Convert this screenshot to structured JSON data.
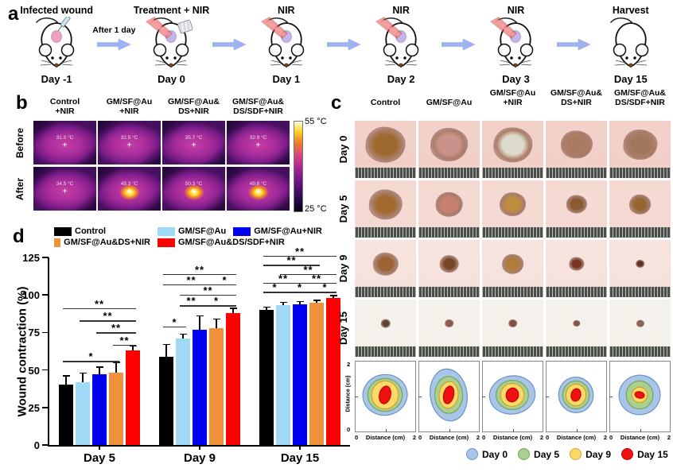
{
  "panels": {
    "a": {
      "label": "a",
      "arrow_note": "After 1 day",
      "stages": [
        {
          "title": "Infected wound",
          "day": "Day -1",
          "wound_color": "#f2a0c0",
          "syringe": true,
          "laser": false,
          "gauze": false
        },
        {
          "title": "Treatment + NIR",
          "day": "Day 0",
          "wound_color": "#c3b5e6",
          "syringe": false,
          "laser": true,
          "gauze": true
        },
        {
          "title": "NIR",
          "day": "Day 1",
          "wound_color": "#c3b5e6",
          "syringe": false,
          "laser": true,
          "gauze": false
        },
        {
          "title": "NIR",
          "day": "Day 2",
          "wound_color": "#c3b5e6",
          "syringe": false,
          "laser": true,
          "gauze": false
        },
        {
          "title": "NIR",
          "day": "Day 3",
          "wound_color": "#c3b5e6",
          "syringe": false,
          "laser": true,
          "gauze": false
        },
        {
          "title": "Harvest",
          "day": "Day 15",
          "wound_color": null,
          "syringe": false,
          "laser": false,
          "gauze": false
        }
      ]
    },
    "b": {
      "label": "b",
      "col_headers": [
        "Control\n+NIR",
        "GM/SF@Au\n+NIR",
        "GM/SF@Au&\nDS+NIR",
        "GM/SF@Au&\nDS/SDF+NIR"
      ],
      "row_headers": [
        "Before",
        "After"
      ],
      "temps": [
        [
          "31.0 °C",
          "32.5 °C",
          "35.7 °C",
          "32.9 °C"
        ],
        [
          "34.5 °C",
          "49.3 °C",
          "50.3 °C",
          "49.8 °C"
        ]
      ],
      "hotspots": [
        [
          0,
          0,
          0,
          0
        ],
        [
          0,
          1,
          1,
          1
        ]
      ],
      "colorbar": {
        "top": "55 °C",
        "bottom": "25 °C"
      }
    },
    "c": {
      "label": "c",
      "col_headers": [
        "Control",
        "GM/SF@Au",
        "GM/SF@Au\n+NIR",
        "GM/SF@Au&\nDS+NIR",
        "GM/SF@Au&\nDS/SDF+NIR"
      ],
      "row_headers": [
        "Day 0",
        "Day 5",
        "Day 9",
        "Day 15"
      ],
      "skin_colors": [
        "#f0ccc4",
        "#f4d6cf",
        "#f6e0da",
        "#f3efe9"
      ],
      "wound_scales": [
        [
          0.66,
          0.62,
          0.64,
          0.52,
          0.56
        ],
        [
          0.55,
          0.45,
          0.44,
          0.34,
          0.36
        ],
        [
          0.42,
          0.32,
          0.36,
          0.25,
          0.15
        ],
        [
          0.16,
          0.15,
          0.15,
          0.12,
          0.13
        ]
      ],
      "wound_colors": [
        [
          "#9c6a2e",
          "#c9938b",
          "#dddbcb",
          "#a97a62",
          "#a0785e"
        ],
        [
          "#a06a30",
          "#c97f70",
          "#bd8c3c",
          "#8a5a30",
          "#97652f"
        ],
        [
          "#9a6434",
          "#744627",
          "#b07c3a",
          "#7c3424",
          "#5f3424"
        ],
        [
          "#5f4437",
          "#a05a52",
          "#8f4f42",
          "#8a5f50",
          "#9a6a5c"
        ]
      ],
      "contour": {
        "x_axis": {
          "min": "0",
          "label": "Distance (cm)",
          "max": "2"
        },
        "y_axis": {
          "min": "0",
          "label": "Distance (cm)",
          "max": "2"
        },
        "legend": [
          {
            "label": "Day 0",
            "fill": "#a9c6e8",
            "stroke": "#6b93c4"
          },
          {
            "label": "Day 5",
            "fill": "#a9d08e",
            "stroke": "#76a35c"
          },
          {
            "label": "Day 9",
            "fill": "#ffd966",
            "stroke": "#cfa32e"
          },
          {
            "label": "Day 15",
            "fill": "#ee1111",
            "stroke": "#c00000"
          }
        ],
        "plots": [
          {
            "radii": [
              [
                0.8,
                0.64
              ],
              [
                0.62,
                0.52
              ],
              [
                0.48,
                0.44
              ],
              [
                0.2,
                0.28
              ]
            ]
          },
          {
            "radii": [
              [
                0.66,
                0.82
              ],
              [
                0.5,
                0.58
              ],
              [
                0.34,
                0.42
              ],
              [
                0.18,
                0.28
              ]
            ]
          },
          {
            "radii": [
              [
                0.82,
                0.6
              ],
              [
                0.58,
                0.46
              ],
              [
                0.42,
                0.36
              ],
              [
                0.22,
                0.22
              ]
            ]
          },
          {
            "radii": [
              [
                0.62,
                0.56
              ],
              [
                0.48,
                0.44
              ],
              [
                0.36,
                0.34
              ],
              [
                0.17,
                0.2
              ]
            ]
          },
          {
            "radii": [
              [
                0.74,
                0.62
              ],
              [
                0.48,
                0.44
              ],
              [
                0.28,
                0.24
              ],
              [
                0.17,
                0.1
              ]
            ]
          }
        ]
      }
    },
    "d": {
      "label": "d",
      "legend_rows": [
        [
          {
            "label": "Control",
            "color": "#000000"
          },
          {
            "label": "GM/SF@Au",
            "color": "#9fd9f6"
          },
          {
            "label": "GM/SF@Au+NIR",
            "color": "#0000f0"
          }
        ],
        [
          {
            "label": "GM/SF@Au&DS+NIR",
            "color": "#f0913c"
          },
          {
            "label": "GM/SF@Au&DS/SDF+NIR",
            "color": "#fe0000"
          }
        ]
      ]
    }
  },
  "chart_data": {
    "type": "bar",
    "title": "",
    "xlabel": "",
    "ylabel": "Wound contraction (%)",
    "ylim": [
      0,
      125
    ],
    "yticks": [
      0,
      25,
      50,
      75,
      100,
      125
    ],
    "grid": false,
    "legend_position": "top",
    "categories": [
      "Day 5",
      "Day 9",
      "Day 15"
    ],
    "series": [
      {
        "name": "Control",
        "color": "#000000",
        "values": [
          40,
          59,
          90
        ],
        "errors": [
          6,
          8,
          2
        ]
      },
      {
        "name": "GM/SF@Au",
        "color": "#9fd9f6",
        "values": [
          42,
          71,
          93
        ],
        "errors": [
          6,
          3,
          2
        ]
      },
      {
        "name": "GM/SF@Au+NIR",
        "color": "#0000f0",
        "values": [
          47,
          77,
          94
        ],
        "errors": [
          5,
          9,
          1.5
        ]
      },
      {
        "name": "GM/SF@Au&DS+NIR",
        "color": "#f0913c",
        "values": [
          48,
          78,
          95
        ],
        "errors": [
          7,
          6,
          1.5
        ]
      },
      {
        "name": "GM/SF@Au&DS/SDF+NIR",
        "color": "#fe0000",
        "values": [
          63,
          88,
          98
        ],
        "errors": [
          3,
          3,
          1.5
        ]
      }
    ],
    "significance": [
      {
        "group": 0,
        "brackets": [
          {
            "from": 1,
            "to": 4,
            "label": "*",
            "y": 56
          },
          {
            "from": 4,
            "to": 5,
            "label": "**",
            "y": 67
          },
          {
            "from": 3,
            "to": 5,
            "label": "**",
            "y": 75
          },
          {
            "from": 2,
            "to": 5,
            "label": "**",
            "y": 83
          },
          {
            "from": 1,
            "to": 5,
            "label": "**",
            "y": 91
          }
        ]
      },
      {
        "group": 1,
        "brackets": [
          {
            "from": 1,
            "to": 2,
            "label": "*",
            "y": 79
          },
          {
            "from": 2,
            "to": 3,
            "label": "**",
            "y": 93
          },
          {
            "from": 3,
            "to": 5,
            "label": "*",
            "y": 93
          },
          {
            "from": 2,
            "to": 5,
            "label": "**",
            "y": 100
          },
          {
            "from": 1,
            "to": 4,
            "label": "**",
            "y": 107
          },
          {
            "from": 4,
            "to": 5,
            "label": "*",
            "y": 107
          },
          {
            "from": 1,
            "to": 5,
            "label": "**",
            "y": 114
          }
        ]
      },
      {
        "group": 2,
        "brackets": [
          {
            "from": 1,
            "to": 2,
            "label": "*",
            "y": 102
          },
          {
            "from": 2,
            "to": 4,
            "label": "*",
            "y": 102
          },
          {
            "from": 4,
            "to": 5,
            "label": "*",
            "y": 102
          },
          {
            "from": 1,
            "to": 3,
            "label": "**",
            "y": 108
          },
          {
            "from": 3,
            "to": 5,
            "label": "**",
            "y": 108
          },
          {
            "from": 2,
            "to": 5,
            "label": "**",
            "y": 114
          },
          {
            "from": 1,
            "to": 4,
            "label": "**",
            "y": 120
          },
          {
            "from": 1,
            "to": 5,
            "label": "**",
            "y": 126
          }
        ]
      }
    ]
  }
}
